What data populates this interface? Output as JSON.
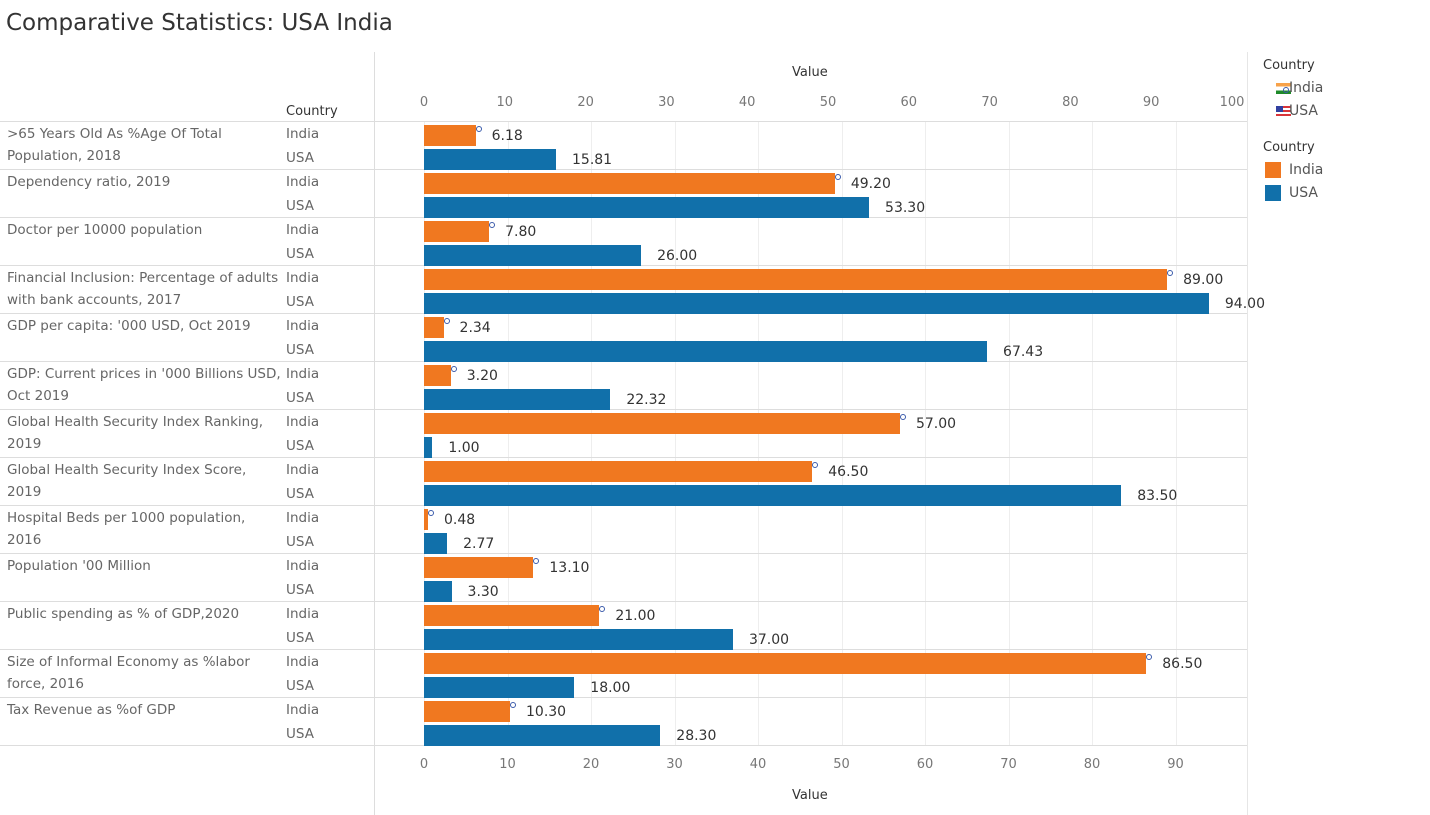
{
  "title": "Comparative Statistics: USA India",
  "row_header": "Country",
  "chart_data": {
    "type": "bar",
    "orientation": "horizontal",
    "title": "Comparative Statistics: USA India",
    "xlabel": "Value",
    "xlim": [
      0,
      95
    ],
    "top_axis_ticks": [
      0,
      10,
      20,
      30,
      40,
      50,
      60,
      70,
      80,
      90,
      100
    ],
    "bottom_axis_ticks": [
      0,
      10,
      20,
      30,
      40,
      50,
      60,
      70,
      80,
      90
    ],
    "categories": [
      ">65 Years Old As %Age Of Total Population, 2018",
      "Dependency ratio, 2019",
      "Doctor per 10000 population",
      "Financial Inclusion: Percentage of adults with bank accounts, 2017",
      "GDP per capita: '000 USD, Oct 2019",
      "GDP: Current prices in '000 Billions USD, Oct 2019",
      "Global Health Security Index Ranking, 2019",
      "Global Health Security Index Score, 2019",
      "Hospital Beds per 1000 population, 2016",
      "Population '00 Million",
      "Public spending as % of GDP,2020",
      "Size of Informal Economy as %labor force, 2016",
      "Tax Revenue as %of GDP"
    ],
    "series": [
      {
        "name": "India",
        "color": "#f07820",
        "values": [
          6.18,
          49.2,
          7.8,
          89.0,
          2.34,
          3.2,
          57.0,
          46.5,
          0.48,
          13.1,
          21.0,
          86.5,
          10.3
        ],
        "labels": [
          "6.18",
          "49.20",
          "7.80",
          "89.00",
          "2.34",
          "3.20",
          "57.00",
          "46.50",
          "0.48",
          "13.10",
          "21.00",
          "86.50",
          "10.30"
        ]
      },
      {
        "name": "USA",
        "color": "#1170aa",
        "values": [
          15.81,
          53.3,
          26.0,
          94.0,
          67.43,
          22.32,
          1.0,
          83.5,
          2.77,
          3.3,
          37.0,
          18.0,
          28.3
        ],
        "labels": [
          "15.81",
          "53.30",
          "26.00",
          "94.00",
          "67.43",
          "22.32",
          "1.00",
          "83.50",
          "2.77",
          "3.30",
          "37.00",
          "18.00",
          "28.30"
        ]
      }
    ],
    "legend": [
      {
        "title": "Country",
        "kind": "flag",
        "items": [
          "India",
          "USA"
        ]
      },
      {
        "title": "Country",
        "kind": "color",
        "items": [
          "India",
          "USA"
        ]
      }
    ],
    "legend_position": "right"
  }
}
